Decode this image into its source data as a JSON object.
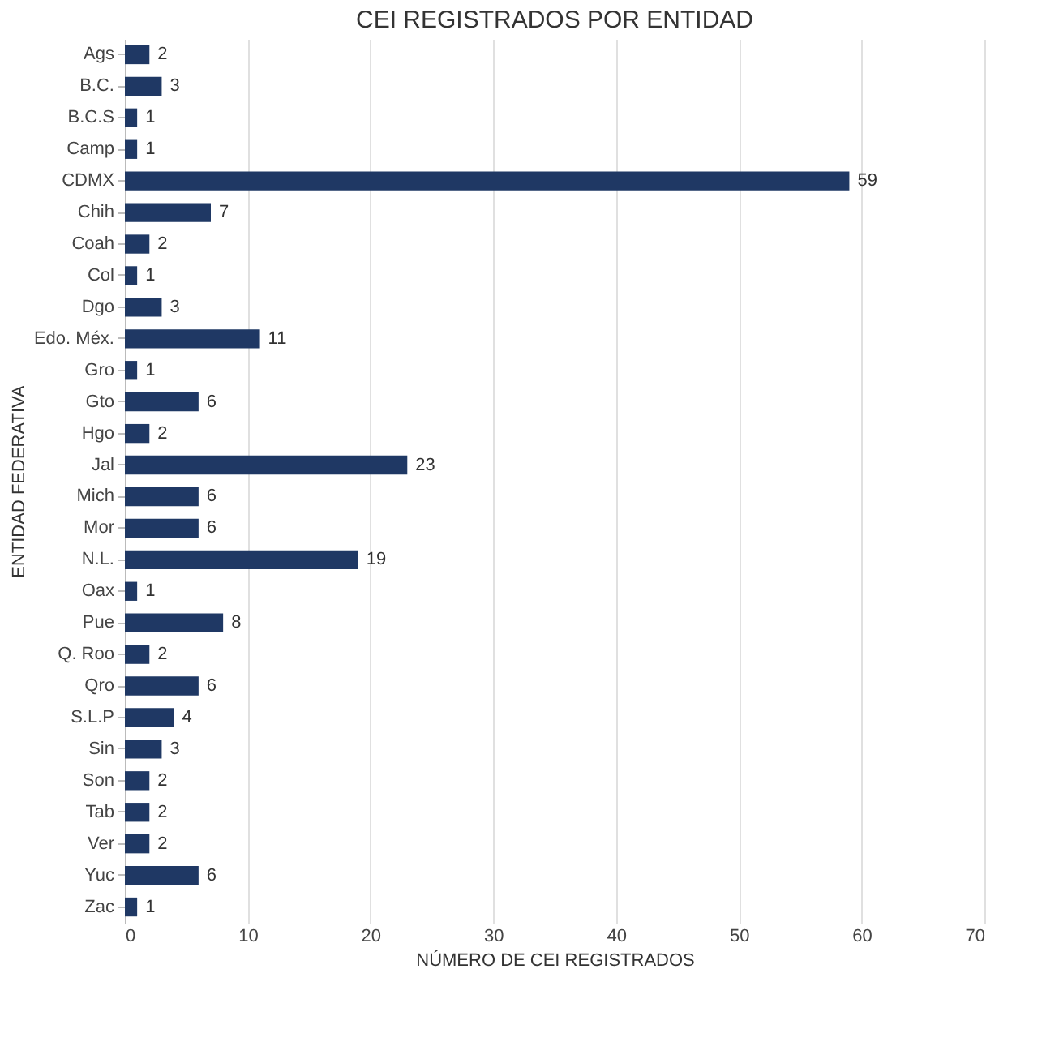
{
  "chart_data": {
    "type": "bar",
    "orientation": "horizontal",
    "title": "CEI REGISTRADOS POR ENTIDAD",
    "xlabel": "NÚMERO DE CEI REGISTRADOS",
    "ylabel": "ENTIDAD FEDERATIVA",
    "categories": [
      "Ags",
      "B.C.",
      "B.C.S",
      "Camp",
      "CDMX",
      "Chih",
      "Coah",
      "Col",
      "Dgo",
      "Edo. Méx.",
      "Gro",
      "Gto",
      "Hgo",
      "Jal",
      "Mich",
      "Mor",
      "N.L.",
      "Oax",
      "Pue",
      "Q. Roo",
      "Qro",
      "S.L.P",
      "Sin",
      "Son",
      "Tab",
      "Ver",
      "Yuc",
      "Zac"
    ],
    "values": [
      2,
      3,
      1,
      1,
      59,
      7,
      2,
      1,
      3,
      11,
      1,
      6,
      2,
      23,
      6,
      6,
      19,
      1,
      8,
      2,
      6,
      4,
      3,
      2,
      2,
      2,
      6,
      1
    ],
    "color": "#1f3864",
    "xlim": [
      0,
      70
    ],
    "xticks": [
      0,
      10,
      20,
      30,
      40,
      50,
      60,
      70
    ],
    "grid": "x",
    "data_labels": true
  }
}
